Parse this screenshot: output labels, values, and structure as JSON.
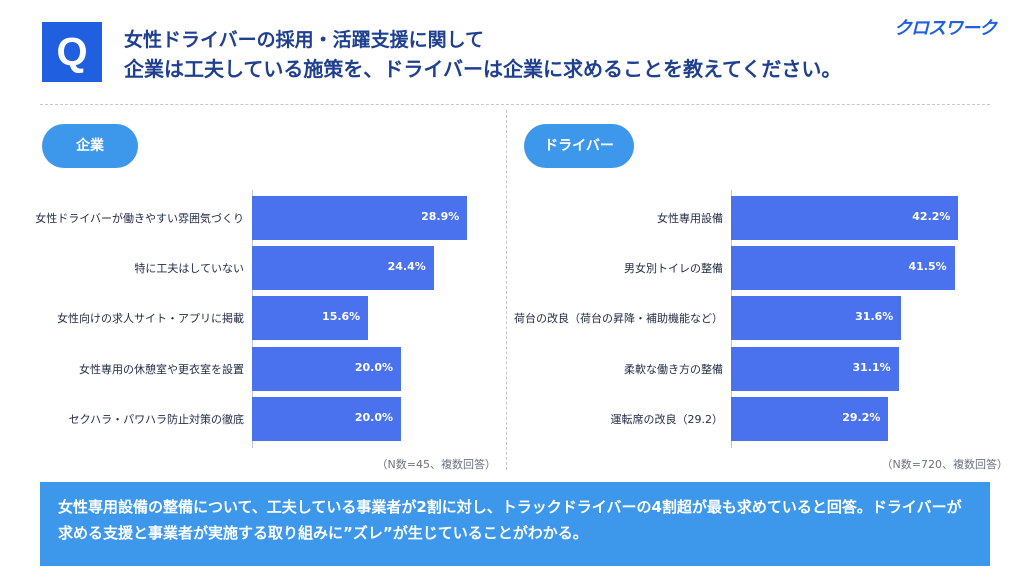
{
  "header": {
    "badge": "Q",
    "title_line1": "女性ドライバーの採用・活躍支援に関して",
    "title_line2": "企業は工夫している施策を、ドライバーは企業に求めることを教えてください。",
    "logo": "クロスワーク"
  },
  "colors": {
    "bar": "#4a72ee",
    "pill": "#3d97ea",
    "badge": "#1f5fe0",
    "title": "#1f3f8f"
  },
  "chart_data": [
    {
      "type": "bar",
      "orientation": "horizontal",
      "group_label": "企業",
      "categories": [
        "女性ドライバーが働きやすい雰囲気づくり",
        "特に工夫はしていない",
        "女性向けの求人サイト・アプリに掲載",
        "女性専用の休憩室や更衣室を設置",
        "セクハラ・パワハラ防止対策の徹底"
      ],
      "values": [
        28.9,
        24.4,
        15.6,
        20.0,
        20.0
      ],
      "value_labels": [
        "28.9%",
        "24.4%",
        "15.6%",
        "20.0%",
        "20.0%"
      ],
      "note": "（N数=45、複数回答）"
    },
    {
      "type": "bar",
      "orientation": "horizontal",
      "group_label": "ドライバー",
      "categories": [
        "女性専用設備",
        "男女別トイレの整備",
        "荷台の改良（荷台の昇降・補助機能など）",
        "柔軟な働き方の整備",
        "運転席の改良（29.2）"
      ],
      "values": [
        42.2,
        41.5,
        31.6,
        31.1,
        29.2
      ],
      "value_labels": [
        "42.2%",
        "41.5%",
        "31.6%",
        "31.1%",
        "29.2%"
      ],
      "note": "（N数=720、複数回答）"
    }
  ],
  "summary": {
    "text": "女性専用設備の整備について、工夫している事業者が2割に対し、トラックドライバーの4割超が最も求めていると回答。ドライバーが求める支援と事業者が実施する取り組みに”ズレ”が生じていることがわかる。"
  }
}
